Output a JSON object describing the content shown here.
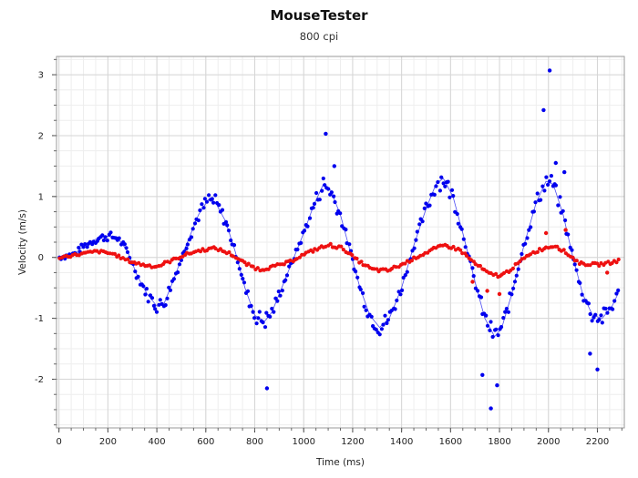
{
  "chart_data": {
    "type": "scatter",
    "title": "MouseTester",
    "subtitle": "800 cpi",
    "xlabel": "Time (ms)",
    "ylabel": "Velocity (m/s)",
    "xlim": [
      -10,
      2310
    ],
    "ylim": [
      -2.8,
      3.3
    ],
    "x_ticks": [
      0,
      200,
      400,
      600,
      800,
      1000,
      1200,
      1400,
      1600,
      1800,
      2000,
      2200
    ],
    "y_ticks": [
      -2,
      -1,
      0,
      1,
      2,
      3
    ],
    "grid": true,
    "series": [
      {
        "color": "#0000ee",
        "style": "points+line",
        "trend": [
          [
            0,
            0
          ],
          [
            60,
            0.05
          ],
          [
            100,
            0.18
          ],
          [
            150,
            0.3
          ],
          [
            200,
            0.35
          ],
          [
            240,
            0.32
          ],
          [
            280,
            0.1
          ],
          [
            320,
            -0.3
          ],
          [
            360,
            -0.6
          ],
          [
            400,
            -0.8
          ],
          [
            430,
            -0.75
          ],
          [
            470,
            -0.35
          ],
          [
            520,
            0.2
          ],
          [
            570,
            0.7
          ],
          [
            610,
            0.95
          ],
          [
            640,
            0.9
          ],
          [
            680,
            0.6
          ],
          [
            720,
            0.1
          ],
          [
            760,
            -0.5
          ],
          [
            800,
            -0.95
          ],
          [
            840,
            -1.05
          ],
          [
            870,
            -0.9
          ],
          [
            910,
            -0.5
          ],
          [
            950,
            -0.1
          ],
          [
            1000,
            0.4
          ],
          [
            1040,
            0.85
          ],
          [
            1080,
            1.2
          ],
          [
            1110,
            1.1
          ],
          [
            1150,
            0.7
          ],
          [
            1190,
            0.1
          ],
          [
            1230,
            -0.5
          ],
          [
            1270,
            -0.95
          ],
          [
            1310,
            -1.15
          ],
          [
            1350,
            -1.0
          ],
          [
            1400,
            -0.5
          ],
          [
            1450,
            0.2
          ],
          [
            1500,
            0.8
          ],
          [
            1540,
            1.2
          ],
          [
            1570,
            1.3
          ],
          [
            1610,
            1.0
          ],
          [
            1650,
            0.4
          ],
          [
            1700,
            -0.4
          ],
          [
            1740,
            -1.0
          ],
          [
            1780,
            -1.3
          ],
          [
            1810,
            -1.15
          ],
          [
            1850,
            -0.6
          ],
          [
            1900,
            0.2
          ],
          [
            1950,
            0.9
          ],
          [
            1990,
            1.25
          ],
          [
            2020,
            1.2
          ],
          [
            2060,
            0.7
          ],
          [
            2100,
            0.0
          ],
          [
            2140,
            -0.6
          ],
          [
            2180,
            -0.95
          ],
          [
            2220,
            -1.0
          ],
          [
            2260,
            -0.8
          ],
          [
            2290,
            -0.55
          ]
        ],
        "outliers": [
          [
            850,
            -2.15
          ],
          [
            1090,
            2.03
          ],
          [
            1125,
            1.5
          ],
          [
            1730,
            -1.93
          ],
          [
            1765,
            -2.48
          ],
          [
            1790,
            -2.1
          ],
          [
            1980,
            2.42
          ],
          [
            2005,
            3.07
          ],
          [
            2030,
            1.55
          ],
          [
            2065,
            1.4
          ],
          [
            2170,
            -1.58
          ],
          [
            2200,
            -1.84
          ]
        ]
      },
      {
        "color": "#ee1111",
        "style": "points+line",
        "trend": [
          [
            0,
            0
          ],
          [
            80,
            0.05
          ],
          [
            160,
            0.1
          ],
          [
            220,
            0.06
          ],
          [
            280,
            -0.05
          ],
          [
            340,
            -0.12
          ],
          [
            400,
            -0.15
          ],
          [
            460,
            -0.05
          ],
          [
            520,
            0.05
          ],
          [
            580,
            0.12
          ],
          [
            640,
            0.15
          ],
          [
            700,
            0.06
          ],
          [
            760,
            -0.1
          ],
          [
            820,
            -0.2
          ],
          [
            880,
            -0.15
          ],
          [
            940,
            -0.08
          ],
          [
            1000,
            0.05
          ],
          [
            1060,
            0.15
          ],
          [
            1110,
            0.2
          ],
          [
            1160,
            0.15
          ],
          [
            1220,
            -0.05
          ],
          [
            1280,
            -0.2
          ],
          [
            1340,
            -0.22
          ],
          [
            1400,
            -0.12
          ],
          [
            1460,
            0.0
          ],
          [
            1520,
            0.12
          ],
          [
            1580,
            0.2
          ],
          [
            1640,
            0.12
          ],
          [
            1700,
            -0.1
          ],
          [
            1760,
            -0.28
          ],
          [
            1810,
            -0.3
          ],
          [
            1860,
            -0.15
          ],
          [
            1920,
            0.05
          ],
          [
            1980,
            0.15
          ],
          [
            2030,
            0.2
          ],
          [
            2080,
            0.05
          ],
          [
            2130,
            -0.1
          ],
          [
            2200,
            -0.12
          ],
          [
            2260,
            -0.08
          ],
          [
            2290,
            -0.05
          ]
        ],
        "outliers": [
          [
            1690,
            -0.4
          ],
          [
            1750,
            -0.55
          ],
          [
            1800,
            -0.6
          ],
          [
            1990,
            0.4
          ],
          [
            2070,
            0.45
          ],
          [
            2240,
            -0.25
          ]
        ]
      }
    ]
  }
}
